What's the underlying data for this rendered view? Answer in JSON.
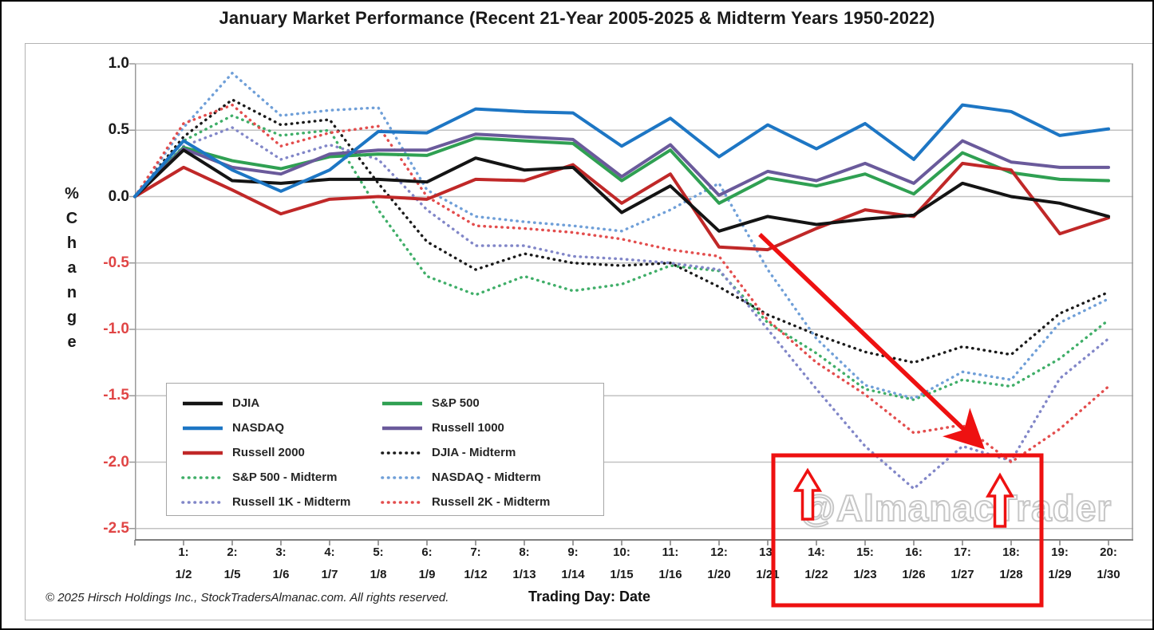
{
  "title": "January Market Performance (Recent 21-Year 2005-2025 & Midterm Years 1950-2022)",
  "footer": "© 2025 Hirsch Holdings Inc., StockTradersAlmanac.com. All rights reserved.",
  "watermark": "@AlmanacTrader",
  "annotation_note": "Red box and arrows highlight weakness trading days 14 (1/22) through 18 (1/28)",
  "chart_data": {
    "type": "line",
    "title": "January Market Performance (Recent 21-Year 2005-2025 & Midterm Years 1950-2022)",
    "xlabel": "Trading Day: Date",
    "ylabel": "% Change",
    "ylim": [
      -2.6,
      1.0
    ],
    "grid": true,
    "legend_position": "inside lower-left, two columns",
    "x": [
      0,
      1,
      2,
      3,
      4,
      5,
      6,
      7,
      8,
      9,
      10,
      11,
      12,
      13,
      14,
      15,
      16,
      17,
      18,
      19,
      20
    ],
    "days": [
      {
        "n": "1:",
        "d": "1/2"
      },
      {
        "n": "2:",
        "d": "1/5"
      },
      {
        "n": "3:",
        "d": "1/6"
      },
      {
        "n": "4:",
        "d": "1/7"
      },
      {
        "n": "5:",
        "d": "1/8"
      },
      {
        "n": "6:",
        "d": "1/9"
      },
      {
        "n": "7:",
        "d": "1/12"
      },
      {
        "n": "8:",
        "d": "1/13"
      },
      {
        "n": "9:",
        "d": "1/14"
      },
      {
        "n": "10:",
        "d": "1/15"
      },
      {
        "n": "11:",
        "d": "1/16"
      },
      {
        "n": "12:",
        "d": "1/20"
      },
      {
        "n": "13:",
        "d": "1/21"
      },
      {
        "n": "14:",
        "d": "1/22"
      },
      {
        "n": "15:",
        "d": "1/23"
      },
      {
        "n": "16:",
        "d": "1/26"
      },
      {
        "n": "17:",
        "d": "1/27"
      },
      {
        "n": "18:",
        "d": "1/28"
      },
      {
        "n": "19:",
        "d": "1/29"
      },
      {
        "n": "20:",
        "d": "1/30"
      }
    ],
    "yticks": [
      {
        "v": 1.0,
        "t": "1.0"
      },
      {
        "v": 0.5,
        "t": "0.5"
      },
      {
        "v": 0.0,
        "t": "0.0"
      },
      {
        "v": -0.5,
        "t": "-0.5"
      },
      {
        "v": -1.0,
        "t": "-1.0"
      },
      {
        "v": -1.5,
        "t": "-1.5"
      },
      {
        "v": -2.0,
        "t": "-2.0"
      },
      {
        "v": -2.5,
        "t": "-2.5"
      }
    ],
    "series": [
      {
        "name": "DJIA",
        "style": "solid",
        "color": "#141414",
        "values": [
          0,
          0.35,
          0.12,
          0.1,
          0.13,
          0.13,
          0.11,
          0.29,
          0.2,
          0.22,
          -0.12,
          0.08,
          -0.26,
          -0.15,
          -0.21,
          -0.17,
          -0.14,
          0.1,
          0.0,
          -0.05,
          -0.15
        ]
      },
      {
        "name": "S&P 500",
        "style": "solid",
        "color": "#2fa052",
        "values": [
          0,
          0.37,
          0.27,
          0.21,
          0.3,
          0.32,
          0.31,
          0.44,
          0.42,
          0.4,
          0.12,
          0.35,
          -0.05,
          0.14,
          0.08,
          0.17,
          0.02,
          0.33,
          0.18,
          0.13,
          0.12
        ]
      },
      {
        "name": "NASDAQ",
        "style": "solid",
        "color": "#1d76c4",
        "values": [
          0,
          0.42,
          0.2,
          0.04,
          0.2,
          0.49,
          0.48,
          0.66,
          0.64,
          0.63,
          0.38,
          0.59,
          0.3,
          0.54,
          0.36,
          0.55,
          0.28,
          0.69,
          0.64,
          0.46,
          0.51
        ]
      },
      {
        "name": "Russell 1000",
        "style": "solid",
        "color": "#6a5a9b",
        "values": [
          0,
          0.36,
          0.22,
          0.17,
          0.32,
          0.35,
          0.35,
          0.47,
          0.45,
          0.43,
          0.15,
          0.39,
          0.01,
          0.19,
          0.12,
          0.25,
          0.1,
          0.42,
          0.26,
          0.22,
          0.22
        ]
      },
      {
        "name": "Russell 2000",
        "style": "solid",
        "color": "#c02828",
        "values": [
          0,
          0.22,
          0.05,
          -0.13,
          -0.02,
          0.0,
          -0.02,
          0.13,
          0.12,
          0.24,
          -0.05,
          0.17,
          -0.38,
          -0.4,
          -0.24,
          -0.1,
          -0.15,
          0.25,
          0.2,
          -0.28,
          -0.16
        ]
      },
      {
        "name": "DJIA - Midterm",
        "style": "dotted",
        "color": "#1a1a1a",
        "values": [
          0,
          0.45,
          0.73,
          0.54,
          0.58,
          0.1,
          -0.34,
          -0.55,
          -0.43,
          -0.5,
          -0.52,
          -0.5,
          -0.68,
          -0.89,
          -1.04,
          -1.17,
          -1.25,
          -1.13,
          -1.19,
          -0.88,
          -0.72
        ]
      },
      {
        "name": "S&P 500 - Midterm",
        "style": "dotted",
        "color": "#3fae68",
        "values": [
          0,
          0.42,
          0.61,
          0.46,
          0.5,
          -0.1,
          -0.6,
          -0.74,
          -0.6,
          -0.71,
          -0.66,
          -0.52,
          -0.56,
          -0.95,
          -1.18,
          -1.45,
          -1.53,
          -1.38,
          -1.43,
          -1.22,
          -0.93
        ]
      },
      {
        "name": "NASDAQ - Midterm",
        "style": "dotted",
        "color": "#6f9fd8",
        "values": [
          0,
          0.52,
          0.93,
          0.61,
          0.65,
          0.67,
          0.05,
          -0.15,
          -0.19,
          -0.22,
          -0.26,
          -0.1,
          0.1,
          -0.55,
          -1.07,
          -1.42,
          -1.52,
          -1.32,
          -1.38,
          -0.95,
          -0.77
        ]
      },
      {
        "name": "Russell 1K - Midterm",
        "style": "dotted",
        "color": "#8186c8",
        "values": [
          0,
          0.38,
          0.52,
          0.28,
          0.39,
          0.28,
          -0.1,
          -0.37,
          -0.37,
          -0.45,
          -0.47,
          -0.5,
          -0.55,
          -1.0,
          -1.45,
          -1.88,
          -2.2,
          -1.88,
          -1.99,
          -1.37,
          -1.07
        ]
      },
      {
        "name": "Russell 2K - Midterm",
        "style": "dotted",
        "color": "#e34d4d",
        "values": [
          0,
          0.55,
          0.69,
          0.38,
          0.48,
          0.53,
          0.0,
          -0.22,
          -0.24,
          -0.27,
          -0.32,
          -0.4,
          -0.45,
          -0.93,
          -1.25,
          -1.49,
          -1.78,
          -1.72,
          -2.0,
          -1.75,
          -1.43
        ]
      }
    ],
    "legend_columns": [
      [
        0,
        2,
        4,
        6,
        8
      ],
      [
        1,
        3,
        5,
        7,
        9
      ]
    ],
    "accent_annotation_color": "#ee1111",
    "negative_tick_color": "#e04545"
  }
}
